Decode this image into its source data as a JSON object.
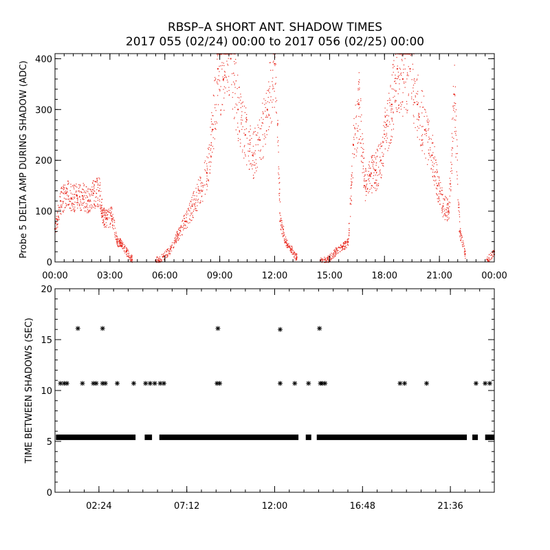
{
  "title_line1": "RBSP–A SHORT ANT. SHADOW TIMES",
  "title_line2": "2017 055 (02/24) 00:00 to 2017 056 (02/25) 00:00",
  "colors": {
    "top_points": "#e8281e",
    "bottom_points": "#000000",
    "axes": "#000000"
  },
  "chart_data": [
    {
      "type": "scatter",
      "ylabel": "Probe 5 DELTA AMP DURING SHADOW (ADC)",
      "xlabel": "",
      "xlim": [
        0,
        24
      ],
      "ylim": [
        0,
        410
      ],
      "x_tick_labels": [
        "00:00",
        "03:00",
        "06:00",
        "09:00",
        "12:00",
        "15:00",
        "18:00",
        "21:00",
        "00:00"
      ],
      "x_tick_values": [
        0,
        3,
        6,
        9,
        12,
        15,
        18,
        21,
        24
      ],
      "y_tick_values": [
        0,
        100,
        200,
        300,
        400
      ],
      "y_tick_labels": [
        "0",
        "100",
        "200",
        "300",
        "400"
      ],
      "marker": "dot",
      "series": [
        {
          "x": [
            0.0,
            0.3,
            0.6,
            0.9,
            1.2,
            1.5,
            1.8,
            2.1,
            2.4,
            2.6,
            2.8,
            3.1,
            3.4,
            3.6,
            3.9,
            4.2,
            5.5,
            5.9,
            6.3,
            6.7,
            7.1,
            7.5,
            7.9,
            8.3,
            8.6,
            8.9,
            9.2,
            9.6,
            10.0,
            10.4,
            10.8,
            11.2,
            11.6,
            12.0,
            12.3,
            12.6,
            12.9,
            13.2,
            14.5,
            14.9,
            15.3,
            15.7,
            16.0,
            16.3,
            16.6,
            16.9,
            17.2,
            17.5,
            17.8,
            18.1,
            18.4,
            18.7,
            19.0,
            19.4,
            19.8,
            20.2,
            20.6,
            20.9,
            21.2,
            21.5,
            21.8,
            22.1,
            22.4,
            23.6,
            24.0
          ],
          "y": [
            65,
            120,
            135,
            125,
            130,
            130,
            120,
            135,
            140,
            90,
            85,
            90,
            40,
            38,
            20,
            5,
            3,
            10,
            25,
            55,
            80,
            110,
            140,
            175,
            260,
            380,
            360,
            400,
            300,
            250,
            210,
            240,
            300,
            390,
            80,
            40,
            25,
            8,
            3,
            5,
            20,
            30,
            40,
            230,
            310,
            150,
            170,
            180,
            200,
            270,
            310,
            380,
            360,
            380,
            310,
            260,
            210,
            150,
            110,
            100,
            330,
            60,
            15,
            5,
            20
          ]
        }
      ]
    },
    {
      "type": "scatter",
      "ylabel": "TIME BETWEEN SHADOWS (SEC)",
      "xlabel": "",
      "xlim": [
        0,
        24
      ],
      "ylim": [
        0,
        20
      ],
      "x_tick_labels": [
        "02:24",
        "07:12",
        "12:00",
        "16:48",
        "21:36"
      ],
      "x_tick_values": [
        2.4,
        7.2,
        12.0,
        16.8,
        21.6
      ],
      "y_tick_values": [
        0,
        5,
        10,
        15,
        20
      ],
      "y_tick_labels": [
        "0",
        "5",
        "10",
        "15",
        "20"
      ],
      "marker": "*",
      "series": [
        {
          "x": [
            1.25,
            2.6,
            8.9,
            12.3,
            14.45
          ],
          "y": [
            16.1,
            16.1,
            16.1,
            16.0,
            16.1
          ]
        },
        {
          "x": [
            0.3,
            0.5,
            0.65,
            1.5,
            2.1,
            2.25,
            2.6,
            2.75,
            3.4,
            4.3,
            4.95,
            5.2,
            5.45,
            5.75,
            5.95,
            8.85,
            9.0,
            12.3,
            13.1,
            13.85,
            14.5,
            14.6,
            14.75,
            18.85,
            19.1,
            20.3,
            23.0,
            23.5,
            23.75
          ],
          "y": [
            10.7,
            10.7,
            10.7,
            10.7,
            10.7,
            10.7,
            10.7,
            10.7,
            10.7,
            10.7,
            10.7,
            10.7,
            10.7,
            10.7,
            10.7,
            10.7,
            10.7,
            10.7,
            10.7,
            10.7,
            10.7,
            10.7,
            10.7,
            10.7,
            10.7,
            10.7,
            10.7,
            10.7,
            10.7
          ]
        },
        {
          "segments": [
            [
              0.05,
              4.4
            ],
            [
              4.9,
              5.3
            ],
            [
              5.7,
              13.3
            ],
            [
              13.7,
              14.0
            ],
            [
              14.3,
              22.5
            ],
            [
              22.8,
              23.1
            ],
            [
              23.5,
              24.0
            ]
          ],
          "y": 5.4
        }
      ]
    }
  ]
}
